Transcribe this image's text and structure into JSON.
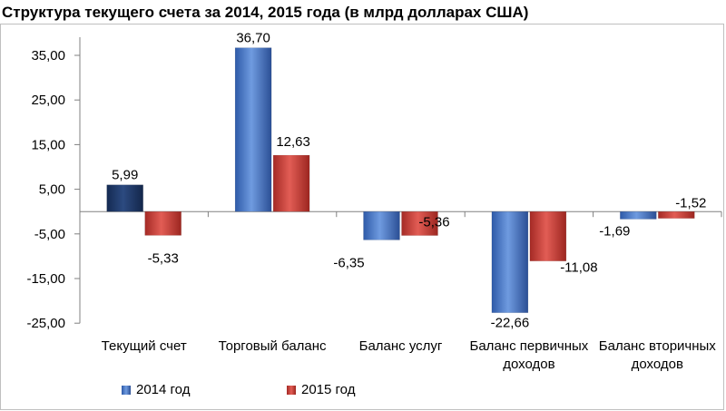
{
  "chart_data": {
    "type": "bar",
    "title": "Структура текущего счета за 2014, 2015 года (в млрд долларах США)",
    "categories": [
      [
        "Текущий счет"
      ],
      [
        "Торговый баланс"
      ],
      [
        "Баланс услуг"
      ],
      [
        "Баланс первичных",
        "доходов"
      ],
      [
        "Баланс вторичных",
        "доходов"
      ]
    ],
    "series": [
      {
        "name": "2014 год",
        "values": [
          5.99,
          36.7,
          -6.35,
          -22.66,
          -1.69
        ],
        "labels": [
          "5,99",
          "36,70",
          "-6,35",
          "-22,66",
          "-1,69"
        ]
      },
      {
        "name": "2015 год",
        "values": [
          -5.33,
          12.63,
          -5.36,
          -11.08,
          -1.52
        ],
        "labels": [
          "-5,33",
          "12,63",
          "-5,36",
          "-11,08",
          "-1,52"
        ]
      }
    ],
    "yticks": [
      35,
      25,
      15,
      5,
      -5,
      -15,
      -25
    ],
    "ytick_labels": [
      "35,00",
      "25,00",
      "15,00",
      "5,00",
      "-5,00",
      "-15,00",
      "-25,00"
    ],
    "ylim": [
      -25,
      40
    ],
    "legend": "bottom"
  },
  "colors": {
    "series_2014": "#4472c4",
    "series_2014_first": "#1f3864",
    "series_2015": "#c0392b",
    "axis": "#808080"
  }
}
